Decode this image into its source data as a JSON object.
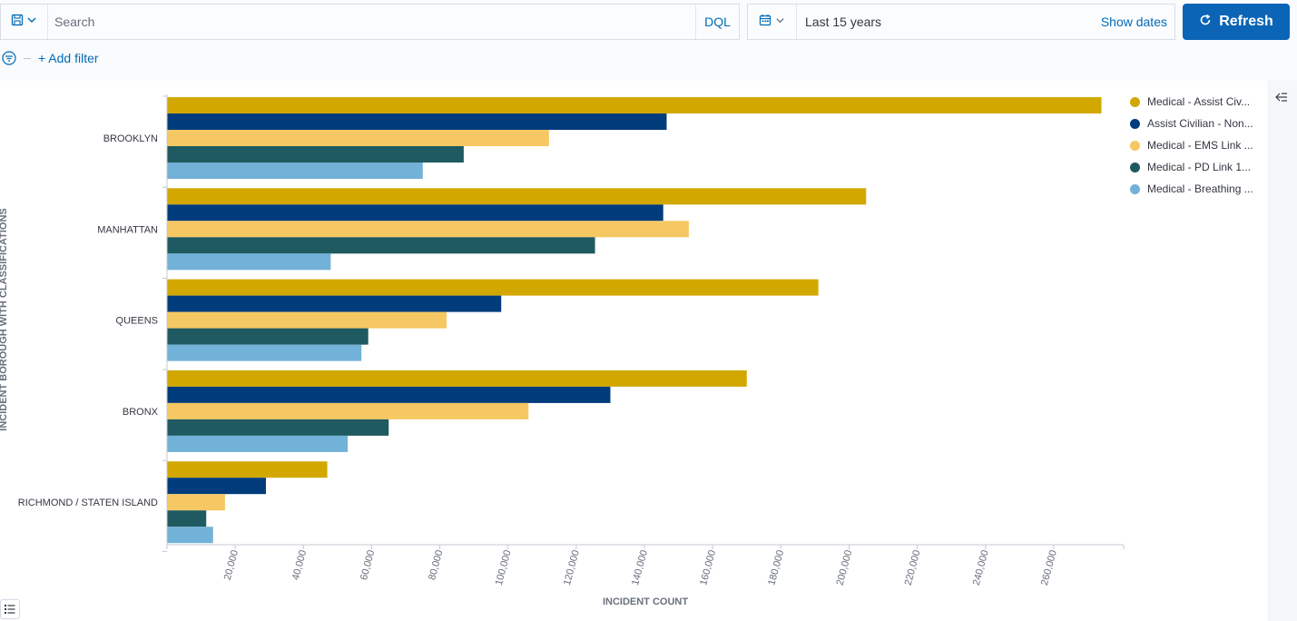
{
  "query_bar": {
    "placeholder": "Search",
    "language": "DQL",
    "saved_query_icon": "save-icon"
  },
  "date_picker": {
    "range_label": "Last 15 years",
    "show_dates_label": "Show dates",
    "calendar_icon": "calendar-icon"
  },
  "refresh_button": {
    "label": "Refresh",
    "icon": "refresh-icon"
  },
  "filters": {
    "add_filter_label": "+ Add filter",
    "filter_icon": "filter-icon"
  },
  "colors": {
    "gold": "#d2a800",
    "navy": "#003b7c",
    "light_gold": "#f6c863",
    "teal": "#1e5a60",
    "light_blue": "#72b1d8",
    "accent": "#0b64b5"
  },
  "chart_data": {
    "type": "bar",
    "orientation": "horizontal",
    "xlabel": "INCIDENT COUNT",
    "ylabel": "INCIDENT BOROUGH WITH CLASSIFICATIONS",
    "categories": [
      "BROOKLYN",
      "MANHATTAN",
      "QUEENS",
      "BRONX",
      "RICHMOND / STATEN ISLAND"
    ],
    "x_ticks": [
      "20,000",
      "40,000",
      "60,000",
      "80,000",
      "100,000",
      "120,000",
      "140,000",
      "160,000",
      "180,000",
      "200,000",
      "220,000",
      "240,000",
      "260,000"
    ],
    "xlim": [
      0,
      280000
    ],
    "grid": false,
    "legend_position": "right",
    "series": [
      {
        "name": "Medical - Assist Civ...",
        "color": "#d2a800",
        "values": [
          274000,
          205000,
          191000,
          170000,
          47000
        ]
      },
      {
        "name": "Assist Civilian - Non...",
        "color": "#003b7c",
        "values": [
          146500,
          145500,
          98000,
          130000,
          29000
        ]
      },
      {
        "name": "Medical - EMS Link ...",
        "color": "#f6c863",
        "values": [
          112000,
          153000,
          82000,
          106000,
          17000
        ]
      },
      {
        "name": "Medical - PD Link 1...",
        "color": "#1e5a60",
        "values": [
          87000,
          125500,
          59000,
          65000,
          11500
        ]
      },
      {
        "name": "Medical - Breathing ...",
        "color": "#72b1d8",
        "values": [
          75000,
          48000,
          57000,
          53000,
          13500
        ]
      }
    ]
  }
}
